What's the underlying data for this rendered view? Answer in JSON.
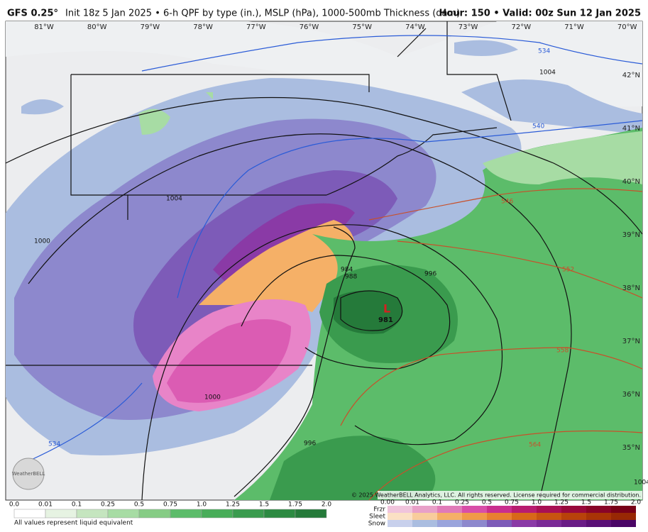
{
  "header": {
    "model": "GFS 0.25°",
    "title": "Init 18z 5 Jan 2025 • 6-h QPF by type (in.), MSLP (hPa), 1000-500mb Thickness (dam)",
    "valid": "Hour: 150 • Valid: 00z Sun 12 Jan 2025"
  },
  "map": {
    "longitude_labels": [
      "81°W",
      "80°W",
      "79°W",
      "78°W",
      "77°W",
      "76°W",
      "75°W",
      "74°W",
      "73°W",
      "72°W",
      "71°W",
      "70°W"
    ],
    "latitude_labels": [
      "42°N",
      "41°N",
      "40°N",
      "39°N",
      "38°N",
      "37°N",
      "36°N",
      "35°N"
    ],
    "thickness_labels": [
      "534",
      "540",
      "546",
      "552",
      "558",
      "564",
      "534"
    ],
    "pressure_labels": [
      "1004",
      "1000",
      "1004",
      "996",
      "988",
      "984",
      "1000",
      "996",
      "1004"
    ],
    "low": {
      "symbol": "L",
      "pressure": "981"
    },
    "copyright": "© 2025 WeatherBELL Analytics, LLC. All rights reserved. License required for commercial distribution.",
    "logo": "WeatherBELL"
  },
  "legend": {
    "rain_ticks": [
      "0.0",
      "0.01",
      "0.1",
      "0.25",
      "0.5",
      "0.75",
      "1.0",
      "1.25",
      "1.5",
      "1.75",
      "2.0"
    ],
    "note": "All values represent liquid equivalent",
    "types": [
      "Frzr",
      "Sleet",
      "Snow"
    ],
    "type_ticks": [
      "0.00",
      "0.01",
      "0.1",
      "0.25",
      "0.5",
      "0.75",
      "1.0",
      "1.25",
      "1.5",
      "1.75",
      "2.0"
    ]
  }
}
